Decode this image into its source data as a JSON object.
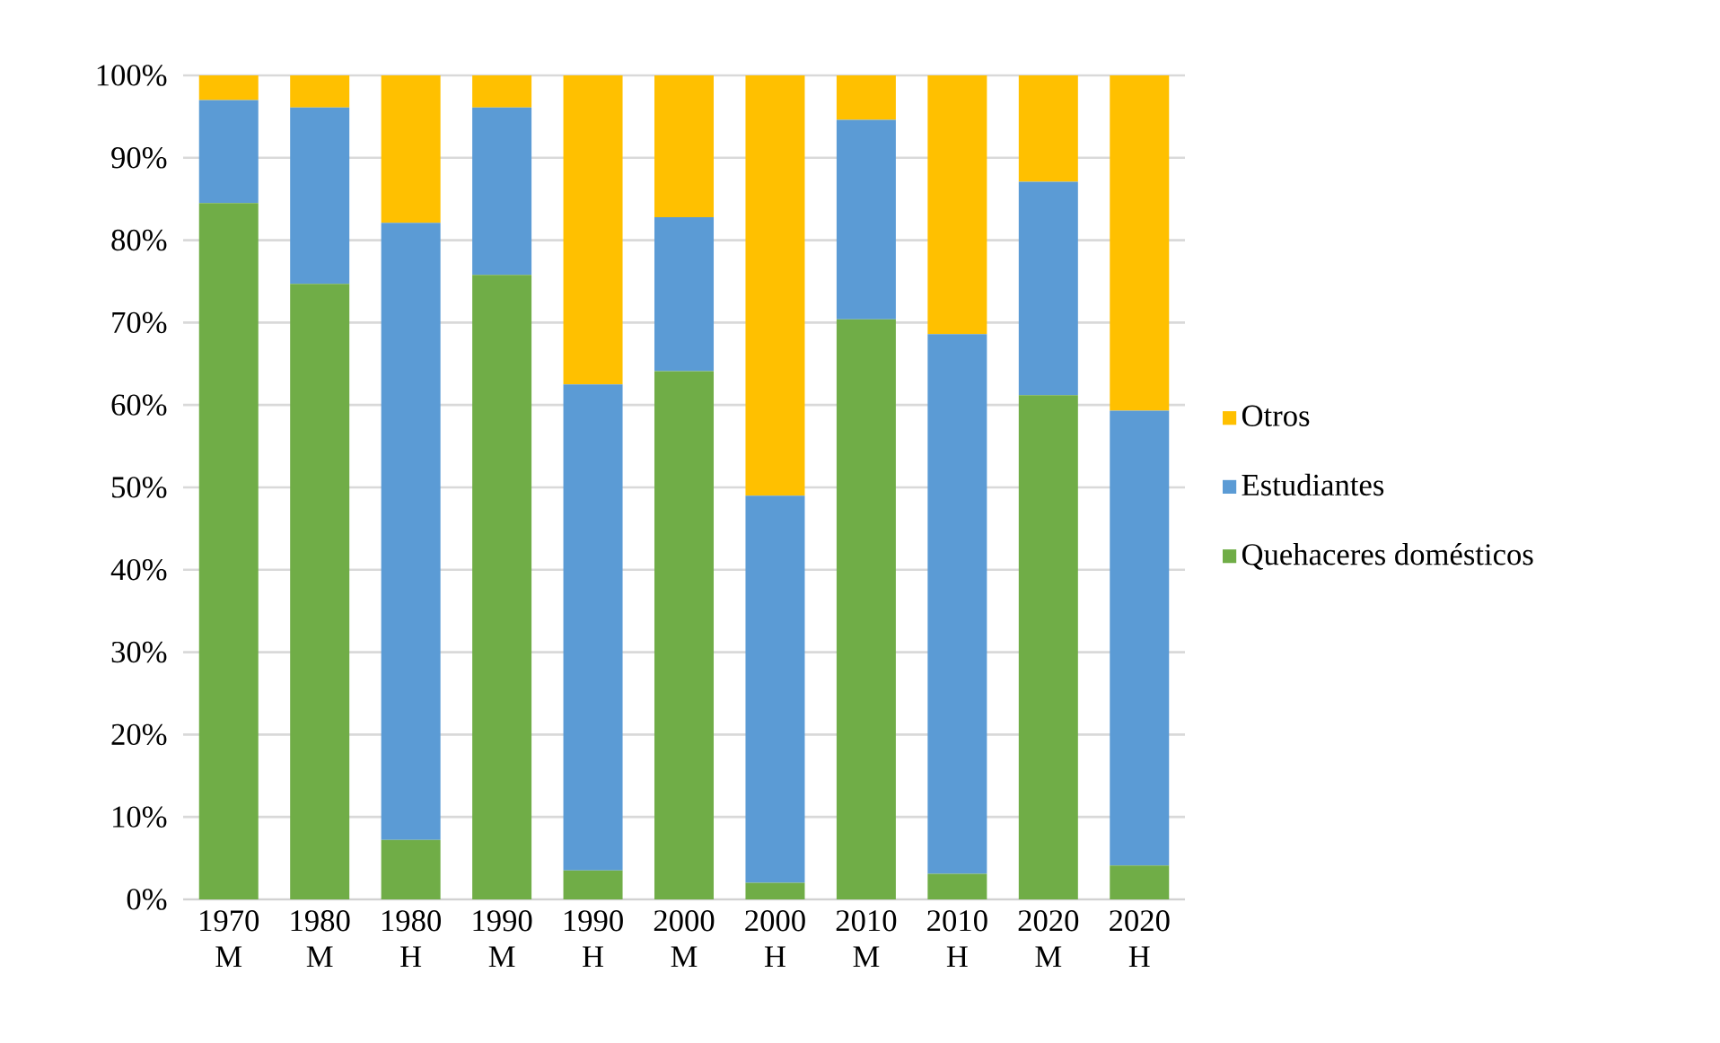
{
  "chart_data": {
    "type": "bar",
    "stacked": true,
    "categories": [
      "1970 M",
      "1980 M",
      "1980 H",
      "1990 M",
      "1990 H",
      "2000 M",
      "2000 H",
      "2010 M",
      "2010 H",
      "2020 M",
      "2020 H"
    ],
    "series": [
      {
        "name": "Quehaceres domésticos",
        "color": "#70ad47",
        "values": [
          84.5,
          74.7,
          7.2,
          75.8,
          3.5,
          64.1,
          2.0,
          70.4,
          3.1,
          61.2,
          4.1
        ]
      },
      {
        "name": "Estudiantes",
        "color": "#5b9bd5",
        "values": [
          12.5,
          21.4,
          74.9,
          20.3,
          59.0,
          18.7,
          47.0,
          24.2,
          65.5,
          25.9,
          55.2
        ]
      },
      {
        "name": "Otros",
        "color": "#ffc000",
        "values": [
          3.0,
          3.9,
          17.9,
          3.9,
          37.5,
          17.2,
          51.0,
          5.4,
          31.4,
          12.9,
          40.7
        ]
      }
    ],
    "ylim": [
      0,
      100
    ],
    "yticks": [
      {
        "value": 0,
        "label": "0%"
      },
      {
        "value": 10,
        "label": "10%"
      },
      {
        "value": 20,
        "label": "20%"
      },
      {
        "value": 30,
        "label": "30%"
      },
      {
        "value": 40,
        "label": "40%"
      },
      {
        "value": 50,
        "label": "50%"
      },
      {
        "value": 60,
        "label": "60%"
      },
      {
        "value": 70,
        "label": "70%"
      },
      {
        "value": 80,
        "label": "80%"
      },
      {
        "value": 90,
        "label": "90%"
      },
      {
        "value": 100,
        "label": "100%"
      }
    ],
    "grid": "y",
    "legend": "right"
  }
}
